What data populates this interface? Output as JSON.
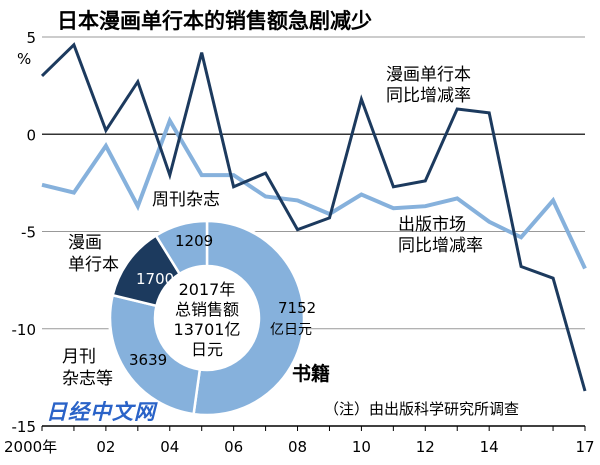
{
  "chart_data": {
    "type": "line",
    "title": "日本漫画单行本的销售额急剧减少",
    "y_unit": "%",
    "x": [
      2000,
      2001,
      2002,
      2003,
      2004,
      2005,
      2006,
      2007,
      2008,
      2009,
      2010,
      2011,
      2012,
      2013,
      2014,
      2015,
      2016,
      2017
    ],
    "x_tick_labels": [
      "2000年",
      "02",
      "04",
      "06",
      "08",
      "10",
      "12",
      "14",
      "17"
    ],
    "x_tick_values": [
      2000,
      2002,
      2004,
      2006,
      2008,
      2010,
      2012,
      2014,
      2017
    ],
    "y_ticks": [
      5,
      0,
      -5,
      -10,
      -15
    ],
    "ylim": [
      -15,
      5
    ],
    "grid": "horizontal",
    "series": [
      {
        "name": "漫画单行本 同比增减率",
        "label_lines": [
          "漫画单行本",
          "同比增减率"
        ],
        "color": "#1c3a5e",
        "values": [
          3.0,
          4.6,
          0.2,
          2.7,
          -2.1,
          4.2,
          -2.7,
          -2.0,
          -4.9,
          -4.3,
          1.8,
          -2.7,
          -2.4,
          1.3,
          1.1,
          -6.8,
          -7.4,
          -13.2
        ]
      },
      {
        "name": "出版市场 同比增减率",
        "label_lines": [
          "出版市场",
          "同比增减率"
        ],
        "color": "#86b1dc",
        "values": [
          -2.6,
          -3.0,
          -0.6,
          -3.7,
          0.7,
          -2.1,
          -2.1,
          -3.2,
          -3.4,
          -4.1,
          -3.1,
          -3.8,
          -3.7,
          -3.3,
          -4.5,
          -5.3,
          -3.4,
          -6.9
        ]
      }
    ],
    "inset": {
      "type": "pie",
      "style": "donut",
      "center_lines": [
        "2017年",
        "总销售额",
        "13701亿",
        "日元"
      ],
      "slices": [
        {
          "name": "书籍",
          "value": 7152,
          "value_lines": [
            "7152",
            "亿日元"
          ],
          "color": "#86b1dc"
        },
        {
          "name": "月刊杂志等",
          "label_lines": [
            "月刊",
            "杂志等"
          ],
          "value": 3639,
          "color": "#86b1dc"
        },
        {
          "name": "漫画单行本",
          "label_lines": [
            "漫画",
            "单行本"
          ],
          "value": 1700,
          "color": "#1c3a5e"
        },
        {
          "name": "周刊杂志",
          "value": 1209,
          "color": "#86b1dc"
        }
      ]
    },
    "note": "（注）由出版科学研究所调查"
  },
  "watermark": "日经中文网"
}
